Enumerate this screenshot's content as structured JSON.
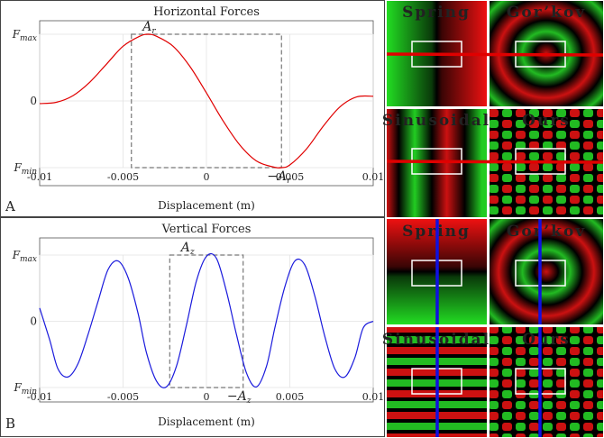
{
  "chart_data": [
    {
      "type": "line",
      "panel": "A",
      "title": "Horizontal Forces",
      "xlabel": "Displacement (m)",
      "ylabel": "",
      "xlim": [
        -0.01,
        0.01
      ],
      "ylim": [
        -1,
        1
      ],
      "x_ticks": [
        "-0.01",
        "-0.005",
        "0",
        "0.005",
        "0.01"
      ],
      "y_ticks": [
        "F_min",
        "0",
        "F_max"
      ],
      "grid": true,
      "color": "#e00000",
      "series": [
        {
          "x": [
            -0.01,
            -0.009,
            -0.008,
            -0.007,
            -0.006,
            -0.005,
            -0.004,
            -0.0035,
            -0.003,
            -0.002,
            -0.001,
            0,
            0.001,
            0.002,
            0.003,
            0.004,
            0.0045,
            0.005,
            0.006,
            0.007,
            0.008,
            0.009,
            0.01
          ],
          "y": [
            -0.04,
            -0.02,
            0.08,
            0.28,
            0.55,
            0.82,
            0.97,
            1.0,
            0.97,
            0.82,
            0.52,
            0.12,
            -0.3,
            -0.66,
            -0.9,
            -0.99,
            -1.0,
            -0.96,
            -0.72,
            -0.38,
            -0.09,
            0.06,
            0.07
          ]
        }
      ],
      "annotations": [
        {
          "text": "A_r",
          "x": -0.0035,
          "y": 1.0
        },
        {
          "text": "-A_r",
          "x": 0.0045,
          "y": -1.0
        }
      ],
      "box": {
        "x": [
          -0.0045,
          0.0045
        ],
        "y": [
          -1,
          1
        ]
      }
    },
    {
      "type": "line",
      "panel": "B",
      "title": "Vertical Forces",
      "xlabel": "Displacement (m)",
      "ylabel": "",
      "xlim": [
        -0.01,
        0.01
      ],
      "ylim": [
        -1,
        1
      ],
      "x_ticks": [
        "-0.01",
        "-0.005",
        "0",
        "0.005",
        "0.01"
      ],
      "y_ticks": [
        "F_min",
        "0",
        "F_max"
      ],
      "grid": true,
      "color": "#1a1adc",
      "series": [
        {
          "x": [
            -0.01,
            -0.0094,
            -0.0089,
            -0.0083,
            -0.0077,
            -0.0071,
            -0.0065,
            -0.0059,
            -0.0053,
            -0.0047,
            -0.0041,
            -0.0036,
            -0.003,
            -0.0024,
            -0.0018,
            -0.0012,
            -0.0006,
            0.0,
            0.0006,
            0.0012,
            0.0018,
            0.0024,
            0.003,
            0.0036,
            0.0041,
            0.0047,
            0.0053,
            0.0059,
            0.0065,
            0.0071,
            0.0077,
            0.0083,
            0.0089,
            0.0094,
            0.01
          ],
          "y": [
            0.2,
            -0.28,
            -0.72,
            -0.84,
            -0.64,
            -0.2,
            0.3,
            0.78,
            0.91,
            0.66,
            0.12,
            -0.47,
            -0.9,
            -0.99,
            -0.68,
            -0.06,
            0.61,
            0.98,
            0.95,
            0.45,
            -0.2,
            -0.78,
            -0.99,
            -0.68,
            -0.1,
            0.52,
            0.91,
            0.85,
            0.38,
            -0.23,
            -0.72,
            -0.84,
            -0.55,
            -0.1,
            0.0
          ]
        }
      ],
      "annotations": [
        {
          "text": "A_z",
          "x": -0.0012,
          "y": 1.0
        },
        {
          "text": "-A_z",
          "x": 0.0021,
          "y": -1.0
        }
      ],
      "box": {
        "x": [
          -0.0022,
          0.0022
        ],
        "y": [
          -1,
          1
        ]
      }
    }
  ],
  "thumbnails": {
    "horizontal": [
      "Spring",
      "Gor’kov",
      "Sinusoidal",
      "Ours"
    ],
    "vertical": [
      "Spring",
      "Gor’kov",
      "Sinusoidal",
      "Ours"
    ],
    "line_colors": {
      "horizontal": "#e00000",
      "vertical": "#1010e0"
    }
  },
  "panel_labels": [
    "A",
    "B"
  ]
}
